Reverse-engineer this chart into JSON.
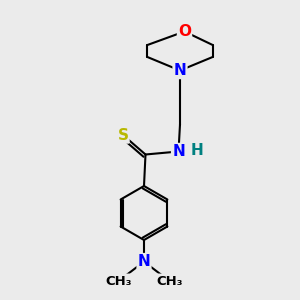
{
  "background_color": "#ebebeb",
  "line_color": "#000000",
  "bond_width": 1.5,
  "atoms": {
    "O": {
      "color": "#ff0000",
      "fontsize": 11
    },
    "N": {
      "color": "#0000ff",
      "fontsize": 11
    },
    "S": {
      "color": "#b8b800",
      "fontsize": 11
    },
    "H": {
      "color": "#008080",
      "fontsize": 11
    },
    "C": {
      "color": "#000000",
      "fontsize": 10
    }
  },
  "figsize": [
    3.0,
    3.0
  ],
  "dpi": 100,
  "xlim": [
    0,
    10
  ],
  "ylim": [
    0,
    10
  ]
}
